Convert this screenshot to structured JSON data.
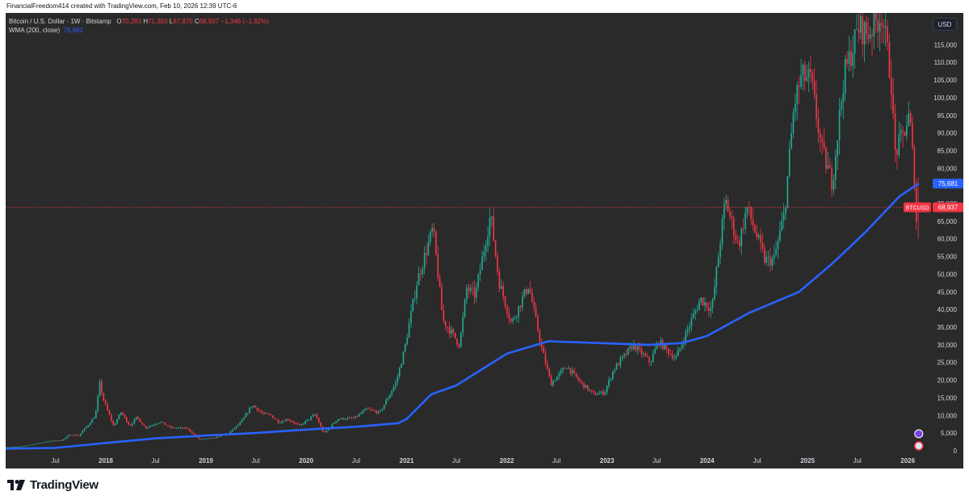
{
  "header": {
    "text": "FinancialFreedom414 created with TradingView.com, Feb 10, 2026 12:39 UTC-6"
  },
  "legend": {
    "symbol": "Bitcoin / U.S. Dollar · 1W · Bitstamp",
    "o_label": "O",
    "o_value": "70,283",
    "h_label": "H",
    "h_value": "71,383",
    "l_label": "L",
    "l_value": "67,870",
    "c_label": "C",
    "c_value": "68,937",
    "change": "−1,346 (−1.92%)",
    "wma_label": "WMA (200, close)",
    "wma_value": "75,681"
  },
  "currency_badge": "USD",
  "footer": {
    "brand": "TradingView"
  },
  "colors": {
    "up": "#22ab94",
    "down": "#f23645",
    "wma": "#2962ff",
    "background": "#2a2a2a",
    "axis_text": "#d1d4dc"
  },
  "chart_data": {
    "type": "candlestick",
    "symbol": "BTCUSD",
    "y_axis_ticks": [
      "0",
      "5,000",
      "10,000",
      "15,000",
      "20,000",
      "25,000",
      "30,000",
      "35,000",
      "40,000",
      "45,000",
      "50,000",
      "55,000",
      "60,000",
      "65,000",
      "70,000",
      "75,000",
      "80,000",
      "85,000",
      "90,000",
      "95,000",
      "100,000",
      "105,000",
      "110,000",
      "115,000"
    ],
    "ylim": [
      0,
      124000
    ],
    "x_axis_ticks": [
      {
        "label": "Jul",
        "date": "2017-07-01",
        "major": false
      },
      {
        "label": "2018",
        "date": "2018-01-01",
        "major": true
      },
      {
        "label": "Jul",
        "date": "2018-07-01",
        "major": false
      },
      {
        "label": "2019",
        "date": "2019-01-01",
        "major": true
      },
      {
        "label": "Jul",
        "date": "2019-07-01",
        "major": false
      },
      {
        "label": "2020",
        "date": "2020-01-01",
        "major": true
      },
      {
        "label": "Jul",
        "date": "2020-07-01",
        "major": false
      },
      {
        "label": "2021",
        "date": "2021-01-01",
        "major": true
      },
      {
        "label": "Jul",
        "date": "2021-07-01",
        "major": false
      },
      {
        "label": "2022",
        "date": "2022-01-01",
        "major": true
      },
      {
        "label": "Jul",
        "date": "2022-07-01",
        "major": false
      },
      {
        "label": "2023",
        "date": "2023-01-01",
        "major": true
      },
      {
        "label": "Jul",
        "date": "2023-07-01",
        "major": false
      },
      {
        "label": "2024",
        "date": "2024-01-01",
        "major": true
      },
      {
        "label": "Jul",
        "date": "2024-07-01",
        "major": false
      },
      {
        "label": "2025",
        "date": "2025-01-01",
        "major": true
      },
      {
        "label": "Jul",
        "date": "2025-07-01",
        "major": false
      },
      {
        "label": "2026",
        "date": "2026-01-01",
        "major": true
      }
    ],
    "xlim": [
      "2017-01-01",
      "2026-03-15"
    ],
    "price_series": [
      {
        "date": "2017-01-01",
        "close": 1000
      },
      {
        "date": "2017-03-01",
        "close": 1100
      },
      {
        "date": "2017-05-01",
        "close": 2000
      },
      {
        "date": "2017-06-15",
        "close": 2700
      },
      {
        "date": "2017-08-01",
        "close": 3000
      },
      {
        "date": "2017-09-01",
        "close": 4600
      },
      {
        "date": "2017-10-01",
        "close": 4300
      },
      {
        "date": "2017-11-01",
        "close": 7000
      },
      {
        "date": "2017-12-01",
        "close": 10000
      },
      {
        "date": "2017-12-17",
        "close": 19000
      },
      {
        "date": "2018-01-01",
        "close": 14000
      },
      {
        "date": "2018-02-05",
        "close": 7000
      },
      {
        "date": "2018-03-05",
        "close": 11000
      },
      {
        "date": "2018-04-05",
        "close": 7000
      },
      {
        "date": "2018-05-01",
        "close": 9500
      },
      {
        "date": "2018-06-01",
        "close": 6500
      },
      {
        "date": "2018-07-25",
        "close": 8200
      },
      {
        "date": "2018-09-01",
        "close": 6500
      },
      {
        "date": "2018-11-01",
        "close": 6300
      },
      {
        "date": "2018-12-15",
        "close": 3200
      },
      {
        "date": "2019-02-01",
        "close": 3500
      },
      {
        "date": "2019-04-01",
        "close": 5000
      },
      {
        "date": "2019-05-15",
        "close": 8000
      },
      {
        "date": "2019-06-26",
        "close": 13000
      },
      {
        "date": "2019-08-01",
        "close": 10500
      },
      {
        "date": "2019-09-01",
        "close": 10000
      },
      {
        "date": "2019-10-01",
        "close": 8000
      },
      {
        "date": "2019-11-01",
        "close": 9000
      },
      {
        "date": "2019-12-15",
        "close": 7000
      },
      {
        "date": "2020-02-10",
        "close": 10300
      },
      {
        "date": "2020-03-12",
        "close": 4800
      },
      {
        "date": "2020-05-01",
        "close": 9000
      },
      {
        "date": "2020-07-01",
        "close": 9200
      },
      {
        "date": "2020-08-15",
        "close": 11800
      },
      {
        "date": "2020-10-01",
        "close": 10700
      },
      {
        "date": "2020-11-01",
        "close": 15000
      },
      {
        "date": "2020-12-01",
        "close": 19500
      },
      {
        "date": "2021-01-01",
        "close": 29000
      },
      {
        "date": "2021-02-15",
        "close": 48000
      },
      {
        "date": "2021-04-14",
        "close": 63000
      },
      {
        "date": "2021-05-20",
        "close": 37000
      },
      {
        "date": "2021-07-20",
        "close": 30000
      },
      {
        "date": "2021-08-15",
        "close": 46000
      },
      {
        "date": "2021-09-15",
        "close": 44000
      },
      {
        "date": "2021-11-10",
        "close": 67000
      },
      {
        "date": "2021-12-10",
        "close": 48000
      },
      {
        "date": "2022-01-25",
        "close": 36000
      },
      {
        "date": "2022-03-28",
        "close": 47000
      },
      {
        "date": "2022-05-15",
        "close": 29000
      },
      {
        "date": "2022-06-18",
        "close": 19000
      },
      {
        "date": "2022-08-14",
        "close": 24000
      },
      {
        "date": "2022-10-01",
        "close": 19500
      },
      {
        "date": "2022-11-20",
        "close": 16000
      },
      {
        "date": "2022-12-30",
        "close": 16500
      },
      {
        "date": "2023-02-01",
        "close": 23000
      },
      {
        "date": "2023-04-14",
        "close": 30000
      },
      {
        "date": "2023-06-15",
        "close": 25000
      },
      {
        "date": "2023-07-14",
        "close": 31000
      },
      {
        "date": "2023-09-15",
        "close": 26000
      },
      {
        "date": "2023-11-01",
        "close": 35000
      },
      {
        "date": "2023-12-15",
        "close": 43000
      },
      {
        "date": "2024-01-25",
        "close": 40000
      },
      {
        "date": "2024-03-14",
        "close": 71000
      },
      {
        "date": "2024-05-01",
        "close": 58000
      },
      {
        "date": "2024-06-01",
        "close": 69000
      },
      {
        "date": "2024-08-05",
        "close": 54000
      },
      {
        "date": "2024-09-07",
        "close": 54000
      },
      {
        "date": "2024-10-15",
        "close": 67000
      },
      {
        "date": "2024-11-20",
        "close": 98000
      },
      {
        "date": "2024-12-17",
        "close": 106000
      },
      {
        "date": "2025-01-20",
        "close": 105000
      },
      {
        "date": "2025-03-01",
        "close": 85000
      },
      {
        "date": "2025-04-08",
        "close": 76000
      },
      {
        "date": "2025-05-20",
        "close": 106000
      },
      {
        "date": "2025-07-14",
        "close": 120000
      },
      {
        "date": "2025-08-14",
        "close": 118000
      },
      {
        "date": "2025-10-06",
        "close": 124000
      },
      {
        "date": "2025-11-10",
        "close": 104000
      },
      {
        "date": "2025-11-21",
        "close": 84000
      },
      {
        "date": "2025-12-15",
        "close": 88000
      },
      {
        "date": "2026-01-14",
        "close": 95000
      },
      {
        "date": "2026-02-01",
        "close": 77000
      },
      {
        "date": "2026-02-06",
        "close": 62000
      },
      {
        "date": "2026-02-10",
        "close": 68937
      }
    ],
    "wma_series": [
      {
        "date": "2017-01-01",
        "value": 600
      },
      {
        "date": "2017-07-01",
        "value": 800
      },
      {
        "date": "2018-01-01",
        "value": 2200
      },
      {
        "date": "2018-07-01",
        "value": 3500
      },
      {
        "date": "2019-01-01",
        "value": 4300
      },
      {
        "date": "2019-07-01",
        "value": 5000
      },
      {
        "date": "2020-01-01",
        "value": 6000
      },
      {
        "date": "2020-07-01",
        "value": 6800
      },
      {
        "date": "2020-12-01",
        "value": 7800
      },
      {
        "date": "2021-01-01",
        "value": 9000
      },
      {
        "date": "2021-04-01",
        "value": 16000
      },
      {
        "date": "2021-07-01",
        "value": 18500
      },
      {
        "date": "2021-10-01",
        "value": 23000
      },
      {
        "date": "2022-01-01",
        "value": 27500
      },
      {
        "date": "2022-06-01",
        "value": 31000
      },
      {
        "date": "2022-12-01",
        "value": 30500
      },
      {
        "date": "2023-06-01",
        "value": 30000
      },
      {
        "date": "2023-10-01",
        "value": 30500
      },
      {
        "date": "2024-01-01",
        "value": 32500
      },
      {
        "date": "2024-06-01",
        "value": 39000
      },
      {
        "date": "2024-12-01",
        "value": 45000
      },
      {
        "date": "2025-04-01",
        "value": 53000
      },
      {
        "date": "2025-08-01",
        "value": 62000
      },
      {
        "date": "2025-12-01",
        "value": 72000
      },
      {
        "date": "2026-02-10",
        "value": 75681
      }
    ],
    "labels": [
      {
        "name": "WMA",
        "text": "75,681",
        "value": 75681,
        "color": "#2962ff"
      },
      {
        "name": "BTCUSD",
        "text": "68,937",
        "value": 68937,
        "color": "#f23645"
      }
    ],
    "reference_line": {
      "value": 68937,
      "style": "dotted",
      "color": "#f23645"
    },
    "grid": false
  }
}
